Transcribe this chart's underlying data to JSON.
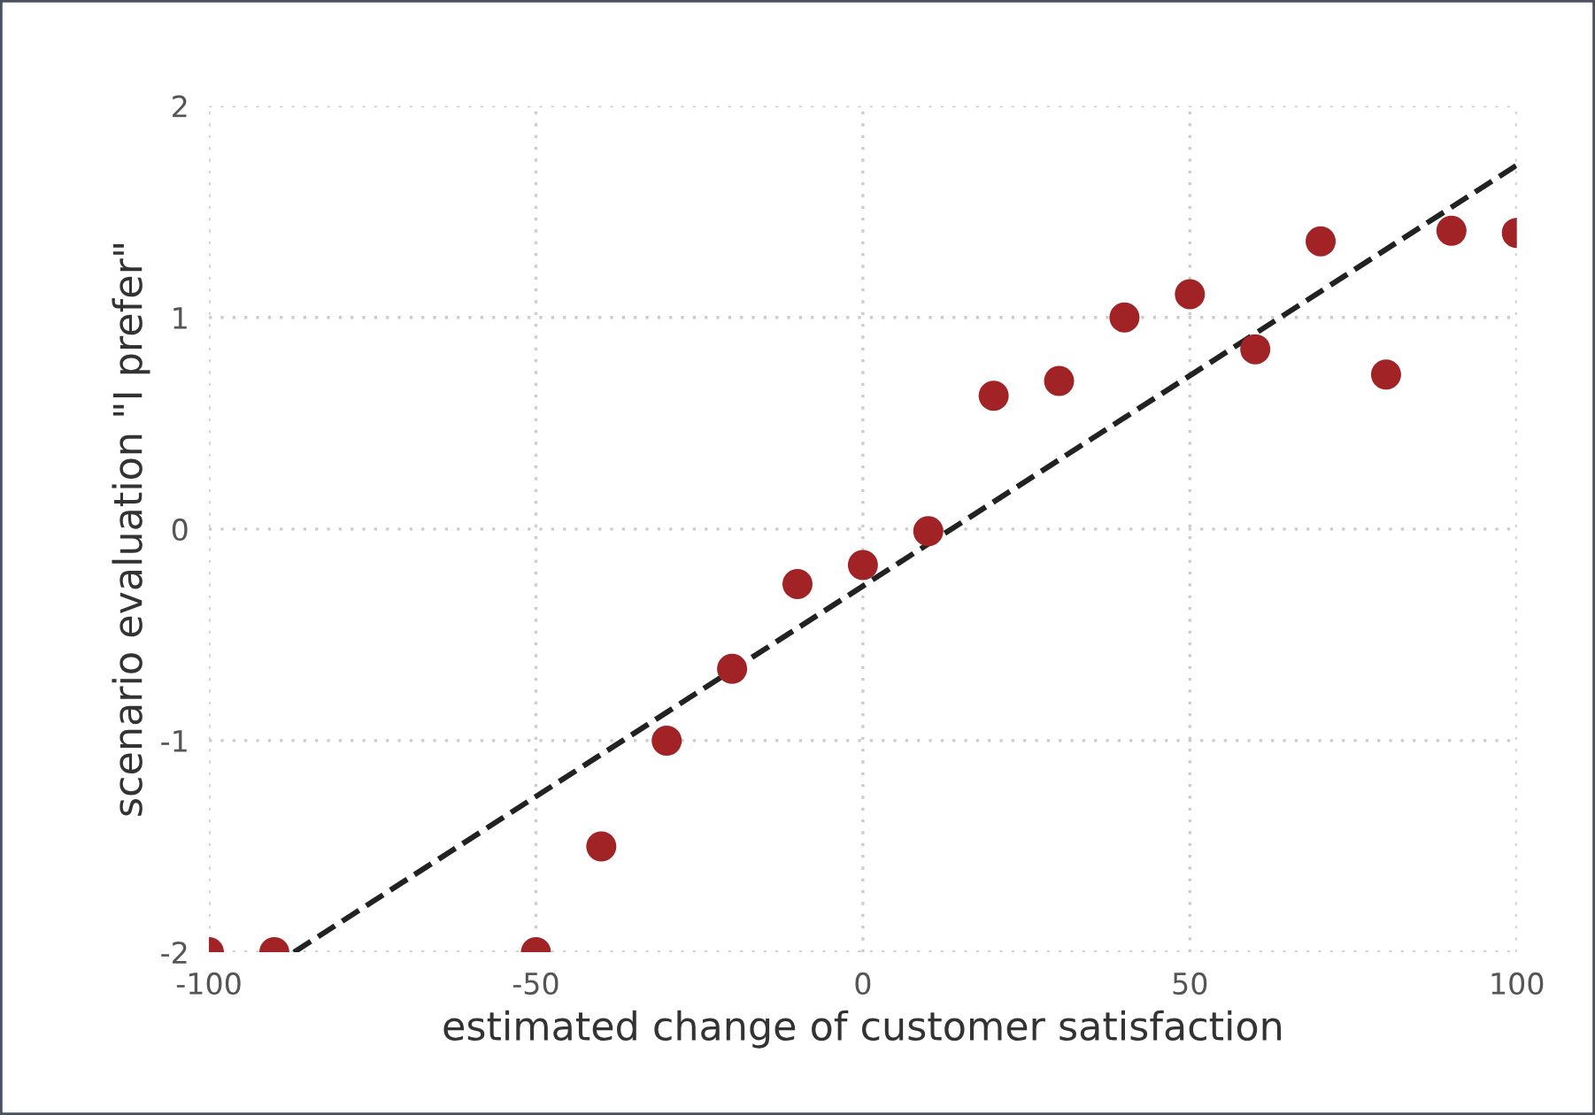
{
  "chart_data": {
    "type": "scatter",
    "xlabel": "estimated change of customer satisfaction",
    "ylabel": "scenario evaluation \"I prefer\"",
    "xlim": [
      -100,
      100
    ],
    "ylim": [
      -2,
      2
    ],
    "xticks": [
      -100,
      -50,
      0,
      50,
      100
    ],
    "yticks": [
      -2,
      -1,
      0,
      1,
      2
    ],
    "grid": true,
    "series": [
      {
        "marker": "circle",
        "color": "#a12326",
        "x": [
          -100,
          -90,
          -50,
          -40,
          -30,
          -20,
          -10,
          0,
          10,
          20,
          30,
          40,
          50,
          60,
          70,
          80,
          90,
          100
        ],
        "values": [
          -2,
          -2,
          -2,
          -1.5,
          -1.0,
          -0.66,
          -0.26,
          -0.17,
          -0.01,
          0.63,
          0.7,
          1.0,
          1.11,
          0.85,
          1.36,
          0.73,
          1.41,
          1.4
        ]
      },
      {
        "type": "line",
        "color": "#222222",
        "line_style": "dashed",
        "x": [
          -87,
          100
        ],
        "values": [
          -2,
          1.72
        ]
      }
    ]
  }
}
